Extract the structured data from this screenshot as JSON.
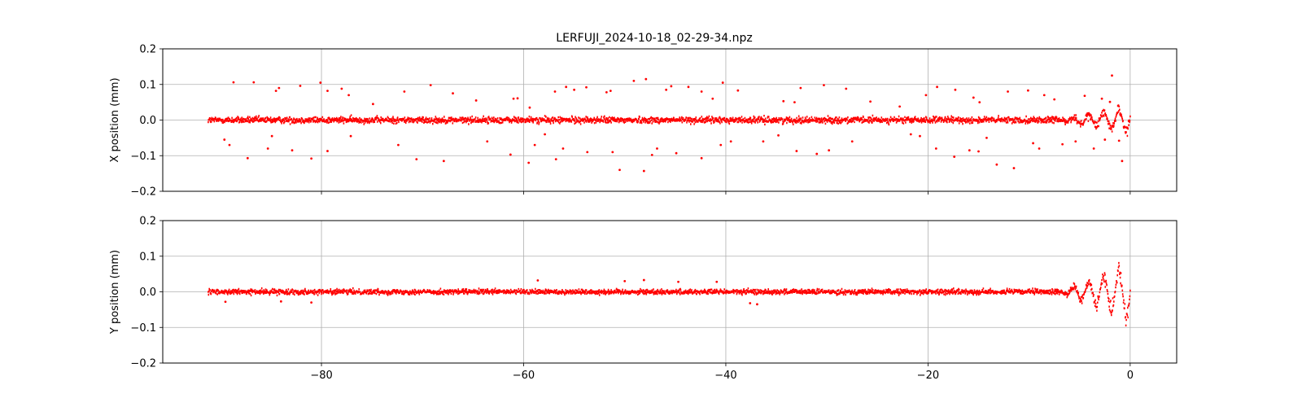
{
  "figure_title": "LERFUJI_2024-10-18_02-29-34.npz",
  "colors": {
    "marker": "#ff0000",
    "grid": "#b0b0b0",
    "axis": "#000000"
  },
  "chart_data": [
    {
      "type": "scatter",
      "name": "x-position-panel",
      "ylabel": "X position (mm)",
      "xlabel": "",
      "xlim": [
        -95.7,
        4.6
      ],
      "ylim": [
        -0.2,
        0.2
      ],
      "xticks": [
        -80,
        -60,
        -40,
        -20,
        0
      ],
      "yticks": [
        -0.2,
        -0.1,
        0.0,
        0.1,
        0.2
      ],
      "ytick_labels": [
        "−0.2",
        "−0.1",
        "0.0",
        "0.1",
        "0.2"
      ],
      "show_xtick_labels": false,
      "grid": true,
      "band": {
        "x_start": -91.2,
        "x_end": 0,
        "spread": 0.015,
        "approx_points": 2600
      },
      "late_oscillation": {
        "x_start": -7,
        "x_end": 0,
        "amplitude_max": 0.05
      },
      "outliers": [
        [
          -88.7,
          0.106
        ],
        [
          -86.7,
          0.106
        ],
        [
          -84.5,
          0.082
        ],
        [
          -84.2,
          0.09
        ],
        [
          -82.1,
          0.096
        ],
        [
          -80.1,
          0.105
        ],
        [
          -79.4,
          0.082
        ],
        [
          -78.0,
          0.088
        ],
        [
          -77.3,
          0.07
        ],
        [
          -74.9,
          0.045
        ],
        [
          -71.8,
          0.08
        ],
        [
          -69.2,
          0.098
        ],
        [
          -67.0,
          0.075
        ],
        [
          -64.7,
          0.055
        ],
        [
          -61.0,
          0.06
        ],
        [
          -60.6,
          0.061
        ],
        [
          -59.4,
          0.035
        ],
        [
          -56.9,
          0.08
        ],
        [
          -55.8,
          0.093
        ],
        [
          -55.0,
          0.085
        ],
        [
          -53.8,
          0.092
        ],
        [
          -51.8,
          0.078
        ],
        [
          -51.4,
          0.082
        ],
        [
          -49.1,
          0.11
        ],
        [
          -47.9,
          0.115
        ],
        [
          -45.9,
          0.085
        ],
        [
          -45.4,
          0.095
        ],
        [
          -43.7,
          0.093
        ],
        [
          -42.4,
          0.08
        ],
        [
          -41.3,
          0.06
        ],
        [
          -40.3,
          0.105
        ],
        [
          -38.8,
          0.083
        ],
        [
          -34.3,
          0.053
        ],
        [
          -33.2,
          0.05
        ],
        [
          -32.6,
          0.09
        ],
        [
          -30.3,
          0.098
        ],
        [
          -28.1,
          0.088
        ],
        [
          -25.7,
          0.052
        ],
        [
          -22.8,
          0.038
        ],
        [
          -20.2,
          0.07
        ],
        [
          -19.1,
          0.093
        ],
        [
          -17.3,
          0.085
        ],
        [
          -15.5,
          0.063
        ],
        [
          -14.9,
          0.05
        ],
        [
          -12.1,
          0.08
        ],
        [
          -10.1,
          0.083
        ],
        [
          -8.5,
          0.07
        ],
        [
          -7.5,
          0.058
        ],
        [
          -4.5,
          0.068
        ],
        [
          -2.8,
          0.06
        ],
        [
          -2.0,
          0.051
        ],
        [
          -1.8,
          0.125
        ],
        [
          -89.6,
          -0.055
        ],
        [
          -89.1,
          -0.07
        ],
        [
          -87.3,
          -0.107
        ],
        [
          -85.3,
          -0.08
        ],
        [
          -84.9,
          -0.045
        ],
        [
          -82.9,
          -0.085
        ],
        [
          -81.0,
          -0.108
        ],
        [
          -79.4,
          -0.087
        ],
        [
          -77.1,
          -0.045
        ],
        [
          -72.4,
          -0.07
        ],
        [
          -70.6,
          -0.11
        ],
        [
          -67.9,
          -0.115
        ],
        [
          -63.6,
          -0.06
        ],
        [
          -61.3,
          -0.097
        ],
        [
          -59.5,
          -0.12
        ],
        [
          -58.9,
          -0.07
        ],
        [
          -57.9,
          -0.04
        ],
        [
          -56.8,
          -0.11
        ],
        [
          -56.1,
          -0.08
        ],
        [
          -53.7,
          -0.09
        ],
        [
          -51.2,
          -0.09
        ],
        [
          -50.5,
          -0.14
        ],
        [
          -48.1,
          -0.143
        ],
        [
          -47.3,
          -0.098
        ],
        [
          -46.8,
          -0.08
        ],
        [
          -44.9,
          -0.093
        ],
        [
          -42.4,
          -0.107
        ],
        [
          -40.5,
          -0.07
        ],
        [
          -39.5,
          -0.06
        ],
        [
          -36.3,
          -0.06
        ],
        [
          -34.8,
          -0.043
        ],
        [
          -33.0,
          -0.087
        ],
        [
          -31.0,
          -0.095
        ],
        [
          -29.8,
          -0.085
        ],
        [
          -27.5,
          -0.06
        ],
        [
          -21.7,
          -0.04
        ],
        [
          -20.8,
          -0.045
        ],
        [
          -19.2,
          -0.08
        ],
        [
          -17.4,
          -0.103
        ],
        [
          -15.9,
          -0.085
        ],
        [
          -15.0,
          -0.088
        ],
        [
          -14.2,
          -0.05
        ],
        [
          -13.2,
          -0.125
        ],
        [
          -11.5,
          -0.135
        ],
        [
          -9.6,
          -0.065
        ],
        [
          -9.0,
          -0.08
        ],
        [
          -6.7,
          -0.068
        ],
        [
          -5.4,
          -0.06
        ],
        [
          -3.6,
          -0.08
        ],
        [
          -2.5,
          -0.055
        ],
        [
          -1.1,
          -0.058
        ],
        [
          -0.8,
          -0.115
        ]
      ]
    },
    {
      "type": "scatter",
      "name": "y-position-panel",
      "ylabel": "Y position (mm)",
      "xlabel": "",
      "xlim": [
        -95.7,
        4.6
      ],
      "ylim": [
        -0.2,
        0.2
      ],
      "xticks": [
        -80,
        -60,
        -40,
        -20,
        0
      ],
      "xtick_labels": [
        "−80",
        "−60",
        "−40",
        "−20",
        "0"
      ],
      "yticks": [
        -0.2,
        -0.1,
        0.0,
        0.1,
        0.2
      ],
      "ytick_labels": [
        "−0.2",
        "−0.1",
        "0.0",
        "0.1",
        "0.2"
      ],
      "show_xtick_labels": true,
      "grid": true,
      "band": {
        "x_start": -91.2,
        "x_end": 0,
        "spread": 0.012,
        "approx_points": 2600
      },
      "late_oscillation": {
        "x_start": -7,
        "x_end": 0,
        "amplitude_max": 0.1
      },
      "outliers": [
        [
          -58.6,
          0.032
        ],
        [
          -50.0,
          0.03
        ],
        [
          -48.1,
          0.033
        ],
        [
          -44.7,
          0.028
        ],
        [
          -40.9,
          0.028
        ],
        [
          -36.9,
          -0.035
        ],
        [
          -37.6,
          -0.032
        ],
        [
          -81.0,
          -0.03
        ],
        [
          -89.5,
          -0.028
        ],
        [
          -84.0,
          -0.027
        ]
      ]
    }
  ]
}
